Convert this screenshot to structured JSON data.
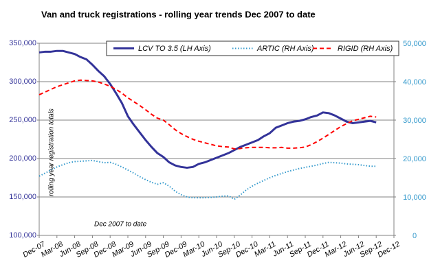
{
  "chart_data": {
    "type": "line",
    "title": "Van and truck registrations - rolling year trends Dec 2007 to date",
    "annotations": [
      "rolling year registration totals",
      "Dec 2007 to date"
    ],
    "categories": [
      "Dec-07",
      null,
      null,
      "Mar-08",
      null,
      null,
      "Jun-08",
      null,
      null,
      "Sep-08",
      null,
      null,
      "Dec-08",
      null,
      null,
      "Mar-09",
      null,
      null,
      "Jun-09",
      null,
      null,
      "Sep-09",
      null,
      null,
      "Dec-09",
      null,
      null,
      "Mar-10",
      null,
      null,
      "Jun-10",
      null,
      null,
      "Sep-10",
      null,
      null,
      "Dec-10",
      null,
      null,
      "Mar-11",
      null,
      null,
      "Jun-11",
      null,
      null,
      "Sep-11",
      null,
      null,
      "Dec-11",
      null,
      null,
      "Mar-12",
      null,
      null,
      "Jun-12",
      null,
      null,
      "Sep-12",
      null,
      null,
      "Dec-12"
    ],
    "series": [
      {
        "name": "LCV TO 3.5 (LH Axis)",
        "color": "#333399",
        "style": "solid",
        "axis": "y",
        "values": [
          338000,
          339000,
          339000,
          340000,
          340000,
          338000,
          336000,
          332000,
          329000,
          322000,
          314000,
          307000,
          297000,
          285000,
          272000,
          255000,
          244000,
          234000,
          224000,
          215000,
          207000,
          202000,
          195000,
          191000,
          189000,
          188000,
          189000,
          193000,
          195000,
          198000,
          201000,
          204000,
          207000,
          211000,
          215000,
          218000,
          221000,
          224000,
          229000,
          233000,
          240000,
          243000,
          246000,
          248000,
          249000,
          251000,
          254000,
          256000,
          260000,
          259000,
          256000,
          252000,
          248000,
          246000,
          247000,
          248000,
          249000,
          247000,
          null,
          null,
          null
        ]
      },
      {
        "name": "ARTIC (RH Axis)",
        "color": "#3399cc",
        "style": "dotted",
        "axis": "y2",
        "values": [
          15400,
          16200,
          17000,
          17800,
          18400,
          18900,
          19200,
          19300,
          19400,
          19500,
          19200,
          18900,
          19000,
          18500,
          17800,
          17000,
          16200,
          15300,
          14500,
          13800,
          13300,
          13700,
          12800,
          11500,
          10600,
          10000,
          9800,
          9800,
          9800,
          9900,
          10000,
          10200,
          10300,
          9400,
          10500,
          11800,
          12800,
          13600,
          14300,
          15000,
          15600,
          16100,
          16600,
          17000,
          17400,
          17700,
          18000,
          18300,
          18700,
          19000,
          18900,
          18800,
          18600,
          18500,
          18400,
          18200,
          18000,
          18000,
          null,
          null,
          null
        ]
      },
      {
        "name": "RIGID (RH Axis)",
        "color": "#ff0000",
        "style": "dashed",
        "axis": "y2",
        "values": [
          36600,
          37300,
          38000,
          38700,
          39200,
          39700,
          40200,
          40400,
          40300,
          40200,
          39900,
          39400,
          38800,
          38000,
          37000,
          35800,
          34800,
          33800,
          32700,
          31500,
          30500,
          30000,
          28800,
          27500,
          26500,
          25700,
          25000,
          24500,
          24100,
          23700,
          23300,
          23100,
          23000,
          22500,
          22600,
          22800,
          22900,
          22900,
          22900,
          22800,
          22800,
          22900,
          22700,
          22700,
          22800,
          23000,
          23600,
          24400,
          25300,
          26300,
          27300,
          28300,
          29100,
          29800,
          30200,
          30600,
          31000,
          30800,
          null,
          null,
          null
        ]
      }
    ],
    "ylim": [
      100000,
      350000
    ],
    "yticks": [
      {
        "value": 100000,
        "label": "100,000"
      },
      {
        "value": 150000,
        "label": "150,000"
      },
      {
        "value": 200000,
        "label": "200,000"
      },
      {
        "value": 250000,
        "label": "250,000"
      },
      {
        "value": 300000,
        "label": "300,000"
      },
      {
        "value": 350000,
        "label": "350,000"
      }
    ],
    "y2lim": [
      0,
      50000
    ],
    "y2ticks": [
      0,
      {
        "value": 10000,
        "label": "10,000"
      },
      {
        "value": 20000,
        "label": "20,000"
      },
      {
        "value": 30000,
        "label": "30,000"
      },
      {
        "value": 40000,
        "label": "40,000"
      },
      {
        "value": 50000,
        "label": "50,000"
      }
    ],
    "grid": true,
    "legend": "top"
  }
}
